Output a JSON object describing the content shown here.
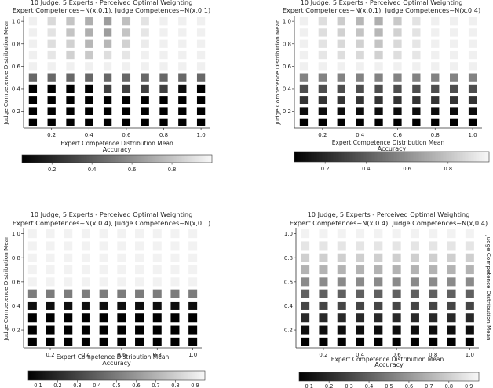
{
  "chart_data": [
    {
      "type": "heatmap",
      "title": "10 Judge, 5 Experts - Perceived Optimal Weighting",
      "subtitle": "Expert Competences~N(x,0.1), Judge Competences~N(x,0.1)",
      "xlabel": "Expert Competence Distribution Mean",
      "ylabel": "Judge Competence Distribution Mean",
      "x": [
        0.1,
        0.2,
        0.3,
        0.4,
        0.5,
        0.6,
        0.7,
        0.8,
        0.9,
        1.0
      ],
      "y": [
        0.1,
        0.2,
        0.3,
        0.4,
        0.5,
        0.6,
        0.7,
        0.8,
        0.9,
        1.0
      ],
      "xticks": [
        "0.2",
        "0.4",
        "0.6",
        "0.8",
        "1.0"
      ],
      "yticks": [
        "0.2",
        "0.4",
        "0.6",
        "0.8",
        "1.0"
      ],
      "ylabel_side": "left",
      "colorbar": {
        "label": "Accuracy",
        "range": [
          0.05,
          1.0
        ],
        "ticks": [
          "0.2",
          "0.4",
          "0.6",
          "0.8"
        ]
      },
      "values": [
        [
          0.05,
          0.05,
          0.05,
          0.05,
          0.05,
          0.05,
          0.05,
          0.05,
          0.05,
          0.05
        ],
        [
          0.05,
          0.05,
          0.05,
          0.05,
          0.05,
          0.05,
          0.05,
          0.05,
          0.05,
          0.05
        ],
        [
          0.05,
          0.05,
          0.05,
          0.05,
          0.05,
          0.05,
          0.05,
          0.05,
          0.05,
          0.05
        ],
        [
          0.05,
          0.05,
          0.05,
          0.05,
          0.3,
          0.3,
          0.3,
          0.3,
          0.1,
          0.05
        ],
        [
          0.45,
          0.45,
          0.45,
          0.45,
          0.45,
          0.45,
          0.45,
          0.45,
          0.45,
          0.45
        ],
        [
          0.97,
          0.97,
          0.97,
          0.97,
          0.97,
          0.97,
          0.97,
          0.97,
          0.97,
          0.97
        ],
        [
          0.97,
          0.93,
          0.85,
          0.82,
          0.9,
          0.93,
          0.97,
          0.97,
          0.97,
          0.97
        ],
        [
          0.97,
          0.9,
          0.85,
          0.75,
          0.75,
          0.85,
          0.95,
          0.97,
          0.97,
          0.97
        ],
        [
          0.97,
          0.92,
          0.8,
          0.72,
          0.65,
          0.8,
          0.93,
          0.97,
          0.97,
          0.97
        ],
        [
          0.97,
          0.88,
          0.8,
          0.72,
          0.65,
          0.78,
          0.92,
          0.97,
          0.97,
          0.97
        ]
      ]
    },
    {
      "type": "heatmap",
      "title": "10 Judge, 5 Experts - Perceived Optimal Weighting",
      "subtitle": "Expert Competences~N(x,0.1), Judge Competences~N(x,0.4)",
      "xlabel": "Expert Competence Distribution Mean",
      "ylabel": "Judge Competence Distribution Mean",
      "x": [
        0.1,
        0.2,
        0.3,
        0.4,
        0.5,
        0.6,
        0.7,
        0.8,
        0.9,
        1.0
      ],
      "y": [
        0.1,
        0.2,
        0.3,
        0.4,
        0.5,
        0.6,
        0.7,
        0.8,
        0.9,
        1.0
      ],
      "xticks": [
        "0.2",
        "0.4",
        "0.6",
        "0.8",
        "1.0"
      ],
      "yticks": [
        "0.2",
        "0.4",
        "0.6",
        "0.8",
        "1.0"
      ],
      "ylabel_side": "left",
      "colorbar": {
        "label": "Accuracy",
        "range": [
          0.05,
          1.0
        ],
        "ticks": [
          "0.2",
          "0.4",
          "0.6",
          "0.8"
        ]
      },
      "values": [
        [
          0.05,
          0.05,
          0.05,
          0.05,
          0.05,
          0.05,
          0.05,
          0.05,
          0.05,
          0.05
        ],
        [
          0.1,
          0.1,
          0.1,
          0.1,
          0.1,
          0.1,
          0.1,
          0.1,
          0.1,
          0.1
        ],
        [
          0.25,
          0.25,
          0.25,
          0.25,
          0.25,
          0.25,
          0.25,
          0.25,
          0.25,
          0.25
        ],
        [
          0.35,
          0.35,
          0.35,
          0.35,
          0.35,
          0.35,
          0.35,
          0.35,
          0.35,
          0.35
        ],
        [
          0.55,
          0.55,
          0.55,
          0.55,
          0.55,
          0.55,
          0.55,
          0.55,
          0.55,
          0.55
        ],
        [
          0.97,
          0.97,
          0.97,
          0.97,
          0.97,
          0.97,
          0.97,
          0.97,
          0.97,
          0.97
        ],
        [
          0.97,
          0.93,
          0.9,
          0.88,
          0.85,
          0.9,
          0.93,
          0.97,
          0.97,
          0.97
        ],
        [
          0.97,
          0.92,
          0.88,
          0.85,
          0.8,
          0.88,
          0.93,
          0.97,
          0.97,
          0.97
        ],
        [
          0.97,
          0.9,
          0.85,
          0.8,
          0.75,
          0.85,
          0.92,
          0.97,
          0.97,
          0.97
        ],
        [
          0.97,
          0.9,
          0.83,
          0.75,
          0.72,
          0.82,
          0.92,
          0.97,
          0.97,
          0.97
        ]
      ]
    },
    {
      "type": "heatmap",
      "title": "10 Judge, 5 Experts - Perceived Optimal Weighting",
      "subtitle": "Expert Competences~N(x,0.4), Judge Competences~N(x,0.1)",
      "xlabel": "Expert Competence Distribution Mean",
      "ylabel": "Judge Competence Distribution Mean",
      "x": [
        0.1,
        0.2,
        0.3,
        0.4,
        0.5,
        0.6,
        0.7,
        0.8,
        0.9,
        1.0
      ],
      "y": [
        0.1,
        0.2,
        0.3,
        0.4,
        0.5,
        0.6,
        0.7,
        0.8,
        0.9,
        1.0
      ],
      "xticks": [
        "0.2",
        "0.4",
        "0.6",
        "0.8",
        "1.0"
      ],
      "yticks": [
        "0.2",
        "0.4",
        "0.6",
        "0.8",
        "1.0"
      ],
      "ylabel_side": "left",
      "colorbar": {
        "label": "Accuracy",
        "range": [
          0.05,
          0.95
        ],
        "ticks": [
          "0.1",
          "0.2",
          "0.3",
          "0.4",
          "0.5",
          "0.6",
          "0.7",
          "0.8",
          "0.9"
        ]
      },
      "values": [
        [
          0.05,
          0.05,
          0.05,
          0.05,
          0.05,
          0.05,
          0.05,
          0.05,
          0.05,
          0.05
        ],
        [
          0.05,
          0.05,
          0.05,
          0.05,
          0.05,
          0.05,
          0.05,
          0.05,
          0.05,
          0.05
        ],
        [
          0.05,
          0.05,
          0.05,
          0.05,
          0.05,
          0.05,
          0.05,
          0.05,
          0.05,
          0.05
        ],
        [
          0.1,
          0.1,
          0.1,
          0.1,
          0.1,
          0.1,
          0.1,
          0.1,
          0.1,
          0.1
        ],
        [
          0.5,
          0.5,
          0.5,
          0.5,
          0.5,
          0.5,
          0.5,
          0.5,
          0.5,
          0.5
        ],
        [
          0.93,
          0.93,
          0.93,
          0.93,
          0.93,
          0.93,
          0.93,
          0.93,
          0.93,
          0.93
        ],
        [
          0.93,
          0.93,
          0.93,
          0.93,
          0.93,
          0.93,
          0.93,
          0.93,
          0.93,
          0.93
        ],
        [
          0.93,
          0.93,
          0.93,
          0.93,
          0.93,
          0.93,
          0.93,
          0.93,
          0.93,
          0.93
        ],
        [
          0.93,
          0.93,
          0.93,
          0.93,
          0.93,
          0.93,
          0.93,
          0.93,
          0.93,
          0.93
        ],
        [
          0.93,
          0.93,
          0.93,
          0.93,
          0.93,
          0.93,
          0.93,
          0.93,
          0.93,
          0.93
        ]
      ]
    },
    {
      "type": "heatmap",
      "title": "10 Judge, 5 Experts - Perceived Optimal Weighting",
      "subtitle": "Expert Competences~N(x,0.4), Judge Competences~N(x,0.4)",
      "xlabel": "Expert Competence Distribution Mean",
      "ylabel": "Judge Competence Distribution Mean",
      "x": [
        0.1,
        0.2,
        0.3,
        0.4,
        0.5,
        0.6,
        0.7,
        0.8,
        0.9,
        1.0
      ],
      "y": [
        0.1,
        0.2,
        0.3,
        0.4,
        0.5,
        0.6,
        0.7,
        0.8,
        0.9,
        1.0
      ],
      "xticks": [
        "0.2",
        "0.4",
        "0.6",
        "0.8",
        "1.0"
      ],
      "yticks": [
        "0.2",
        "0.4",
        "0.6",
        "0.8",
        "1.0"
      ],
      "ylabel_side": "right",
      "colorbar": {
        "label": "Accuracy",
        "range": [
          0.05,
          0.95
        ],
        "ticks": [
          "0.1",
          "0.2",
          "0.3",
          "0.4",
          "0.5",
          "0.6",
          "0.7",
          "0.8",
          "0.9"
        ]
      },
      "values": [
        [
          0.05,
          0.05,
          0.05,
          0.05,
          0.05,
          0.05,
          0.05,
          0.05,
          0.05,
          0.05
        ],
        [
          0.1,
          0.1,
          0.1,
          0.1,
          0.1,
          0.1,
          0.1,
          0.1,
          0.1,
          0.1
        ],
        [
          0.2,
          0.2,
          0.2,
          0.2,
          0.2,
          0.2,
          0.2,
          0.2,
          0.2,
          0.2
        ],
        [
          0.3,
          0.3,
          0.3,
          0.3,
          0.3,
          0.3,
          0.3,
          0.3,
          0.3,
          0.3
        ],
        [
          0.4,
          0.4,
          0.4,
          0.4,
          0.4,
          0.4,
          0.4,
          0.4,
          0.4,
          0.4
        ],
        [
          0.55,
          0.55,
          0.55,
          0.55,
          0.55,
          0.55,
          0.55,
          0.55,
          0.55,
          0.55
        ],
        [
          0.7,
          0.7,
          0.7,
          0.7,
          0.7,
          0.7,
          0.7,
          0.7,
          0.7,
          0.7
        ],
        [
          0.8,
          0.8,
          0.8,
          0.8,
          0.8,
          0.8,
          0.8,
          0.8,
          0.8,
          0.8
        ],
        [
          0.88,
          0.88,
          0.88,
          0.88,
          0.88,
          0.88,
          0.88,
          0.88,
          0.88,
          0.88
        ],
        [
          0.93,
          0.93,
          0.93,
          0.93,
          0.93,
          0.93,
          0.93,
          0.93,
          0.93,
          0.93
        ]
      ]
    }
  ]
}
